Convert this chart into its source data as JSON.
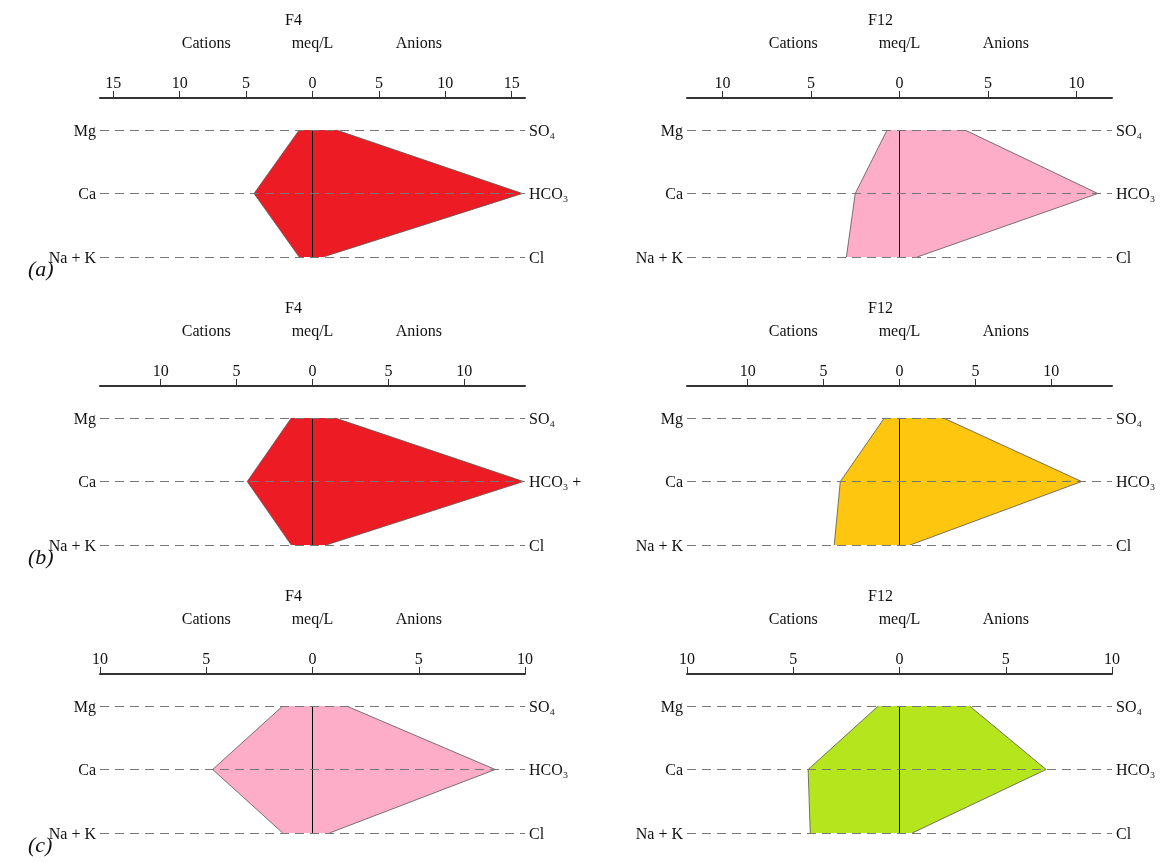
{
  "chart_data": [
    {
      "type": "area",
      "orientation": "horizontal",
      "title": "F4",
      "xlabel": "meq/L",
      "annotations": [
        "Cations",
        "Anions",
        "(a)"
      ],
      "categories": [
        "Mg",
        "Ca",
        "Na + K"
      ],
      "y2_categories": [
        "SO₄",
        "HCO₃",
        "Cl"
      ],
      "xlim": [
        -16,
        16
      ],
      "xticks": [
        {
          "value": -15,
          "label": "15"
        },
        {
          "value": -10,
          "label": "10"
        },
        {
          "value": -5,
          "label": "5"
        },
        0,
        5,
        10,
        15
      ],
      "ref_lines": [
        {
          "axis": "x",
          "value": 0,
          "color": "#000000"
        },
        {
          "axis": "y",
          "value": "Mg",
          "color": "#777777",
          "line_style": "dashed"
        },
        {
          "axis": "y",
          "value": "Ca",
          "color": "#777777",
          "line_style": "dashed"
        },
        {
          "axis": "y",
          "value": "Na + K",
          "color": "#777777",
          "line_style": "dashed"
        }
      ],
      "series": [
        {
          "color": "#ed1c24",
          "values": [
            -1.0,
            -4.4,
            -1.0
          ]
        },
        {
          "color": "#ed1c24",
          "values": [
            1.8,
            15.8,
            0.8
          ]
        }
      ]
    },
    {
      "type": "area",
      "orientation": "horizontal",
      "title": "F12",
      "xlabel": "meq/L",
      "annotations": [
        "Cations",
        "Anions"
      ],
      "categories": [
        "Mg",
        "Ca",
        "Na + K"
      ],
      "y2_categories": [
        "SO₄",
        "HCO₃",
        "Cl"
      ],
      "xlim": [
        -12,
        12
      ],
      "xticks": [
        {
          "value": -10,
          "label": "10"
        },
        {
          "value": -5,
          "label": "5"
        },
        0,
        5,
        10
      ],
      "ref_lines": [
        {
          "axis": "x",
          "value": 0,
          "color": "#000000"
        },
        {
          "axis": "y",
          "value": "Mg",
          "color": "#777777",
          "line_style": "dashed"
        },
        {
          "axis": "y",
          "value": "Ca",
          "color": "#777777",
          "line_style": "dashed"
        },
        {
          "axis": "y",
          "value": "Na + K",
          "color": "#777777",
          "line_style": "dashed"
        }
      ],
      "series": [
        {
          "color": "#fdadc8",
          "values": [
            -0.7,
            -2.5,
            -3.0
          ]
        },
        {
          "color": "#fdadc8",
          "values": [
            3.7,
            11.2,
            1.0
          ]
        }
      ]
    },
    {
      "type": "area",
      "orientation": "horizontal",
      "title": "F4",
      "xlabel": "meq/L",
      "annotations": [
        "Cations",
        "Anions",
        "(b)"
      ],
      "categories": [
        "Mg",
        "Ca",
        "Na + K"
      ],
      "y2_categories": [
        "SO₄",
        "HCO₃ +",
        "Cl"
      ],
      "xlim": [
        -14,
        14
      ],
      "xticks": [
        {
          "value": -10,
          "label": "10"
        },
        {
          "value": -5,
          "label": "5"
        },
        0,
        5,
        10
      ],
      "ref_lines": [
        {
          "axis": "x",
          "value": 0,
          "color": "#000000"
        },
        {
          "axis": "y",
          "value": "Mg",
          "color": "#777777",
          "line_style": "dashed"
        },
        {
          "axis": "y",
          "value": "Ca",
          "color": "#777777",
          "line_style": "dashed"
        },
        {
          "axis": "y",
          "value": "Na + K",
          "color": "#777777",
          "line_style": "dashed"
        }
      ],
      "series": [
        {
          "color": "#ed1c24",
          "values": [
            -1.4,
            -4.3,
            -1.4
          ]
        },
        {
          "color": "#ed1c24",
          "values": [
            1.5,
            13.9,
            0.9
          ]
        }
      ]
    },
    {
      "type": "area",
      "orientation": "horizontal",
      "title": "F12",
      "xlabel": "meq/L",
      "annotations": [
        "Cations",
        "Anions"
      ],
      "categories": [
        "Mg",
        "Ca",
        "Na + K"
      ],
      "y2_categories": [
        "SO₄",
        "HCO₃",
        "Cl"
      ],
      "xlim": [
        -14,
        14
      ],
      "xticks": [
        {
          "value": -10,
          "label": "10"
        },
        {
          "value": -5,
          "label": "5"
        },
        0,
        5,
        10
      ],
      "ref_lines": [
        {
          "axis": "x",
          "value": 0,
          "color": "#000000"
        },
        {
          "axis": "y",
          "value": "Mg",
          "color": "#777777",
          "line_style": "dashed"
        },
        {
          "axis": "y",
          "value": "Ca",
          "color": "#777777",
          "line_style": "dashed"
        },
        {
          "axis": "y",
          "value": "Na + K",
          "color": "#777777",
          "line_style": "dashed"
        }
      ],
      "series": [
        {
          "color": "#fec60f",
          "values": [
            -1.0,
            -3.9,
            -4.3
          ]
        },
        {
          "color": "#fec60f",
          "values": [
            2.9,
            12.0,
            0.7
          ]
        }
      ]
    },
    {
      "type": "area",
      "orientation": "horizontal",
      "title": "F4",
      "xlabel": "meq/L",
      "annotations": [
        "Cations",
        "Anions",
        "(c)"
      ],
      "categories": [
        "Mg",
        "Ca",
        "Na + K"
      ],
      "y2_categories": [
        "SO₄",
        "HCO₃",
        "Cl"
      ],
      "xlim": [
        -10,
        10
      ],
      "xticks": [
        {
          "value": -10,
          "label": "10"
        },
        {
          "value": -5,
          "label": "5"
        },
        0,
        5,
        10
      ],
      "ref_lines": [
        {
          "axis": "x",
          "value": 0,
          "color": "#000000"
        },
        {
          "axis": "y",
          "value": "Mg",
          "color": "#777777",
          "line_style": "dashed"
        },
        {
          "axis": "y",
          "value": "Ca",
          "color": "#777777",
          "line_style": "dashed"
        },
        {
          "axis": "y",
          "value": "Na + K",
          "color": "#777777",
          "line_style": "dashed"
        }
      ],
      "series": [
        {
          "color": "#fdadc8",
          "values": [
            -1.4,
            -4.7,
            -1.4
          ]
        },
        {
          "color": "#fdadc8",
          "values": [
            1.6,
            8.6,
            0.8
          ]
        }
      ]
    },
    {
      "type": "area",
      "orientation": "horizontal",
      "title": "F12",
      "xlabel": "meq/L",
      "annotations": [
        "Cations",
        "Anions"
      ],
      "categories": [
        "Mg",
        "Ca",
        "Na + K"
      ],
      "y2_categories": [
        "SO₄",
        "HCO₃",
        "Cl"
      ],
      "xlim": [
        -10,
        10
      ],
      "xticks": [
        {
          "value": -10,
          "label": "10"
        },
        {
          "value": -5,
          "label": "5"
        },
        0,
        5,
        10
      ],
      "ref_lines": [
        {
          "axis": "x",
          "value": 0,
          "color": "#000000"
        },
        {
          "axis": "y",
          "value": "Mg",
          "color": "#777777",
          "line_style": "dashed"
        },
        {
          "axis": "y",
          "value": "Ca",
          "color": "#777777",
          "line_style": "dashed"
        },
        {
          "axis": "y",
          "value": "Na + K",
          "color": "#777777",
          "line_style": "dashed"
        }
      ],
      "series": [
        {
          "color": "#b5e51d",
          "values": [
            -1.0,
            -4.3,
            -4.2
          ]
        },
        {
          "color": "#b5e51d",
          "values": [
            3.3,
            6.9,
            0.6
          ]
        }
      ]
    }
  ]
}
